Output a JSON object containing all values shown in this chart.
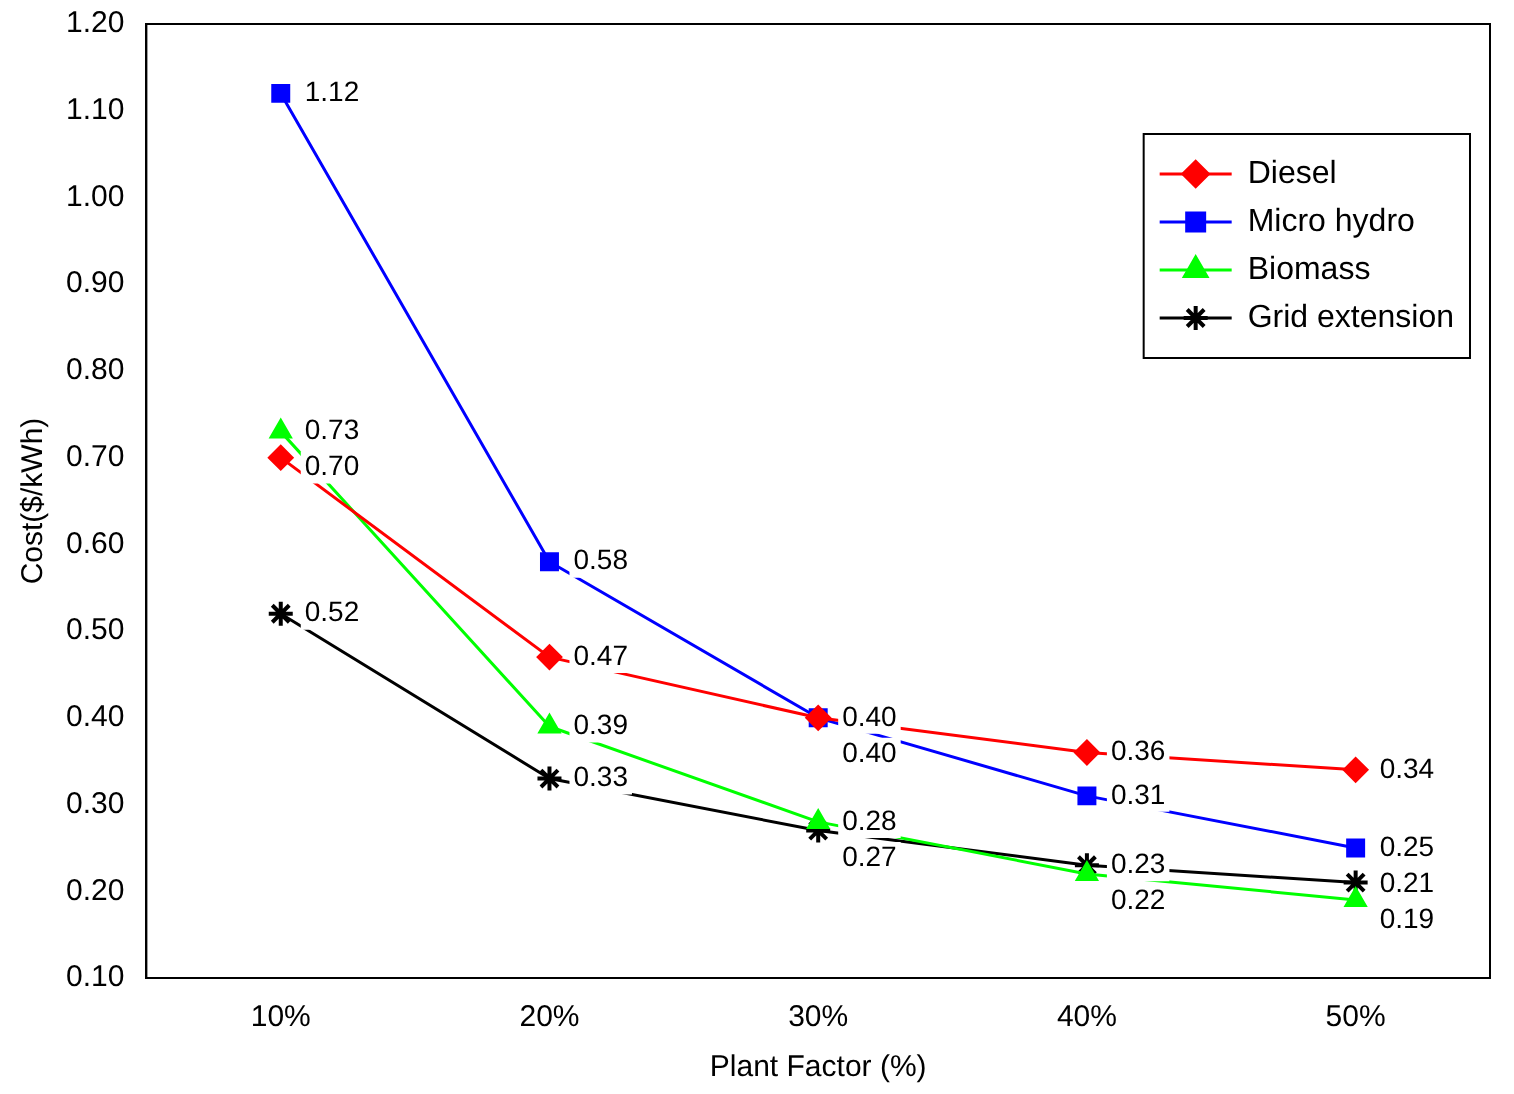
{
  "chart_data": {
    "type": "line",
    "xlabel": "Plant Factor (%)",
    "ylabel": "Cost($/kWh)",
    "categories": [
      "10%",
      "20%",
      "30%",
      "40%",
      "50%"
    ],
    "ylim": [
      0.1,
      1.2
    ],
    "yticks": [
      {
        "value": 0.1,
        "label": "0.10"
      },
      {
        "value": 0.2,
        "label": "0.20"
      },
      {
        "value": 0.3,
        "label": "0.30"
      },
      {
        "value": 0.4,
        "label": "0.40"
      },
      {
        "value": 0.5,
        "label": "0.50"
      },
      {
        "value": 0.6,
        "label": "0.60"
      },
      {
        "value": 0.7,
        "label": "0.70"
      },
      {
        "value": 0.8,
        "label": "0.80"
      },
      {
        "value": 0.9,
        "label": "0.90"
      },
      {
        "value": 1.0,
        "label": "1.00"
      },
      {
        "value": 1.1,
        "label": "1.10"
      },
      {
        "value": 1.2,
        "label": "1.20"
      }
    ],
    "grid": false,
    "legend": "top right",
    "series": [
      {
        "name": "Diesel",
        "color": "#ff0000",
        "marker": "diamond",
        "values": [
          0.7,
          0.47,
          0.4,
          0.36,
          0.34
        ],
        "value_labels": [
          "0.70",
          "0.47",
          "0.40",
          "0.36",
          "0.34"
        ]
      },
      {
        "name": "Micro hydro",
        "color": "#0000ff",
        "marker": "square",
        "values": [
          1.12,
          0.58,
          0.4,
          0.31,
          0.25
        ],
        "value_labels": [
          "1.12",
          "0.58",
          "0.40",
          "0.31",
          "0.25"
        ]
      },
      {
        "name": "Biomass",
        "color": "#00ff00",
        "marker": "triangle",
        "values": [
          0.73,
          0.39,
          0.28,
          0.22,
          0.19
        ],
        "value_labels": [
          "0.73",
          "0.39",
          "0.28",
          "0.22",
          "0.19"
        ]
      },
      {
        "name": "Grid extension",
        "color": "#000000",
        "marker": "cross",
        "values": [
          0.52,
          0.33,
          0.27,
          0.23,
          0.21
        ],
        "value_labels": [
          "0.52",
          "0.33",
          "0.27",
          "0.23",
          "0.21"
        ]
      }
    ]
  }
}
